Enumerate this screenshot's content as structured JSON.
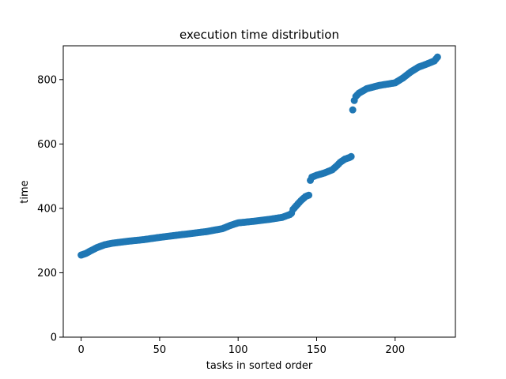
{
  "chart_data": {
    "type": "scatter",
    "title": "execution time distribution",
    "xlabel": "tasks in sorted order",
    "ylabel": "time",
    "xlim": [
      -11.4,
      238.4
    ],
    "ylim": [
      0,
      905
    ],
    "xticks": [
      0,
      50,
      100,
      150,
      200
    ],
    "yticks": [
      0,
      200,
      400,
      600,
      800
    ],
    "grid": false,
    "marker_color": "#1f77b4",
    "knots": [
      [
        0,
        255
      ],
      [
        3,
        260
      ],
      [
        6,
        268
      ],
      [
        10,
        278
      ],
      [
        15,
        287
      ],
      [
        20,
        292
      ],
      [
        30,
        298
      ],
      [
        40,
        303
      ],
      [
        50,
        310
      ],
      [
        60,
        316
      ],
      [
        70,
        322
      ],
      [
        80,
        328
      ],
      [
        90,
        337
      ],
      [
        95,
        347
      ],
      [
        100,
        355
      ],
      [
        110,
        360
      ],
      [
        120,
        366
      ],
      [
        128,
        372
      ],
      [
        133,
        381
      ],
      [
        134,
        385
      ],
      [
        135,
        397
      ],
      [
        137,
        408
      ],
      [
        140,
        424
      ],
      [
        143,
        437
      ],
      [
        145,
        441
      ],
      [
        146,
        487
      ],
      [
        147,
        497
      ],
      [
        150,
        503
      ],
      [
        155,
        510
      ],
      [
        160,
        520
      ],
      [
        163,
        533
      ],
      [
        165,
        543
      ],
      [
        168,
        553
      ],
      [
        171,
        558
      ],
      [
        172,
        561
      ],
      [
        172.5,
        628
      ],
      [
        173,
        706
      ],
      [
        174,
        735
      ],
      [
        175,
        748
      ],
      [
        177,
        758
      ],
      [
        182,
        772
      ],
      [
        190,
        782
      ],
      [
        200,
        790
      ],
      [
        205,
        805
      ],
      [
        210,
        824
      ],
      [
        215,
        839
      ],
      [
        220,
        848
      ],
      [
        225,
        858
      ],
      [
        227,
        870
      ]
    ],
    "n_points": 228
  }
}
